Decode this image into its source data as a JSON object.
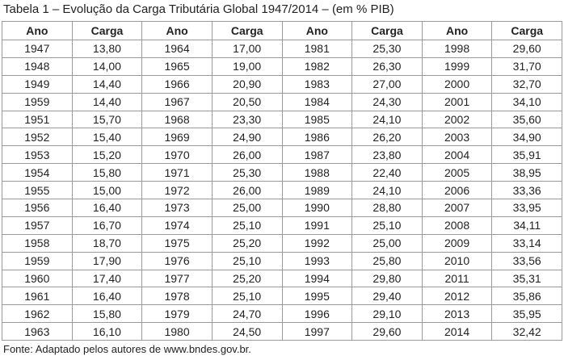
{
  "header": {
    "title": "Tabela 1 – Evolução da Carga Tributária Global 1947/2014 – (em % PIB)"
  },
  "table": {
    "columns": [
      "Ano",
      "Carga",
      "Ano",
      "Carga",
      "Ano",
      "Carga",
      "Ano",
      "Carga"
    ],
    "rows": [
      [
        "1947",
        "13,80",
        "1964",
        "17,00",
        "1981",
        "25,30",
        "1998",
        "29,60"
      ],
      [
        "1948",
        "14,00",
        "1965",
        "19,00",
        "1982",
        "26,30",
        "1999",
        "31,70"
      ],
      [
        "1949",
        "14,40",
        "1966",
        "20,90",
        "1983",
        "27,00",
        "2000",
        "32,70"
      ],
      [
        "1959",
        "14,40",
        "1967",
        "20,50",
        "1984",
        "24,30",
        "2001",
        "34,10"
      ],
      [
        "1951",
        "15,70",
        "1968",
        "23,30",
        "1985",
        "24,10",
        "2002",
        "35,60"
      ],
      [
        "1952",
        "15,40",
        "1969",
        "24,90",
        "1986",
        "26,20",
        "2003",
        "34,90"
      ],
      [
        "1953",
        "15,20",
        "1970",
        "26,00",
        "1987",
        "23,80",
        "2004",
        "35,91"
      ],
      [
        "1954",
        "15,80",
        "1971",
        "25,30",
        "1988",
        "22,40",
        "2005",
        "38,95"
      ],
      [
        "1955",
        "15,00",
        "1972",
        "26,00",
        "1989",
        "24,10",
        "2006",
        "33,36"
      ],
      [
        "1956",
        "16,40",
        "1973",
        "25,00",
        "1990",
        "28,80",
        "2007",
        "33,95"
      ],
      [
        "1957",
        "16,70",
        "1974",
        "25,10",
        "1991",
        "25,10",
        "2008",
        "34,11"
      ],
      [
        "1958",
        "18,70",
        "1975",
        "25,20",
        "1992",
        "25,00",
        "2009",
        "33,14"
      ],
      [
        "1959",
        "17,90",
        "1976",
        "25,10",
        "1993",
        "25,80",
        "2010",
        "33,56"
      ],
      [
        "1960",
        "17,40",
        "1977",
        "25,20",
        "1994",
        "29,80",
        "2011",
        "35,31"
      ],
      [
        "1961",
        "16,40",
        "1978",
        "25,10",
        "1995",
        "29,40",
        "2012",
        "35,86"
      ],
      [
        "1962",
        "15,80",
        "1979",
        "24,70",
        "1996",
        "29,10",
        "2013",
        "35,95"
      ],
      [
        "1963",
        "16,10",
        "1980",
        "24,50",
        "1997",
        "29,60",
        "2014",
        "32,42"
      ]
    ]
  },
  "footer": {
    "source": "Fonte: Adaptado pelos autores de www.bndes.gov.br."
  }
}
